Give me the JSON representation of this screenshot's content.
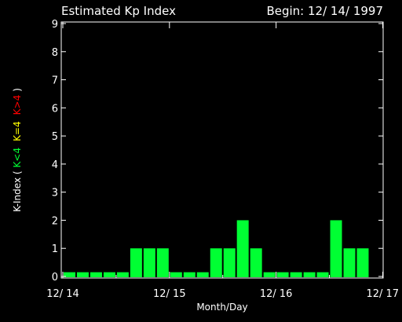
{
  "chart_data": {
    "type": "bar",
    "title": "Estimated Kp Index",
    "begin_label": "Begin: 12/ 14/ 1997",
    "xlabel": "Month/Day",
    "ylabel": {
      "prefix": "K-Index (",
      "green_part": "K<4",
      "yellow_part": "K=4",
      "red_part": "K>4",
      "suffix": ")"
    },
    "ylim": [
      0,
      9
    ],
    "yticks": [
      "0",
      "1",
      "2",
      "3",
      "4",
      "5",
      "6",
      "7",
      "8",
      "9"
    ],
    "xticks": [
      "12/ 14",
      "12/ 15",
      "12/ 16",
      "12/ 17"
    ],
    "bins_per_day": 8,
    "days": 3,
    "values": [
      0.15,
      0.15,
      0.15,
      0.15,
      0.15,
      1,
      1,
      1,
      0.15,
      0.15,
      0.15,
      1,
      1,
      2,
      1,
      0.15,
      0.15,
      0.15,
      0.15,
      0.15,
      2,
      1,
      1,
      0
    ],
    "grid": false,
    "colors": {
      "background": "#000000",
      "axes": "#ffffff",
      "bar_low": "#00ff33",
      "bar_equal": "#ffff00",
      "bar_high": "#ff0000",
      "label_green": "#00ff33",
      "label_yellow": "#ffff00",
      "label_red": "#ff0000"
    }
  }
}
